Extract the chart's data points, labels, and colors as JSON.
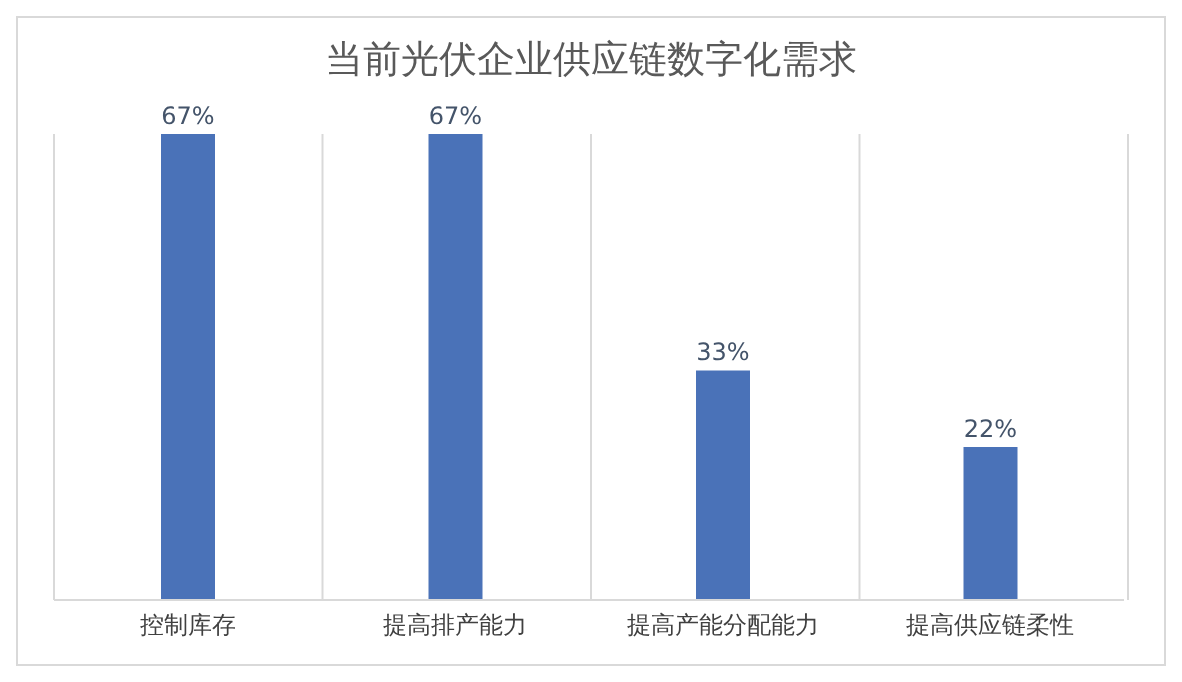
{
  "chart_data": {
    "type": "bar",
    "title": "当前光伏企业供应链数字化需求",
    "categories": [
      "控制库存",
      "提高排产能力",
      "提高产能分配能力",
      "提高供应链柔性"
    ],
    "values": [
      67,
      67,
      33,
      22
    ],
    "value_labels": [
      "67%",
      "67%",
      "33%",
      "22%"
    ],
    "color": "#4a72b8",
    "grid": "x"
  }
}
